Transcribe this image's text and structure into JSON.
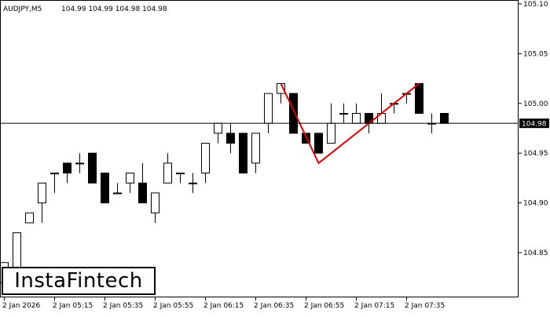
{
  "header": {
    "symbol": "AUDJPY,M5",
    "ohlc": "104.99 104.99 104.98 104.98"
  },
  "logo": {
    "text": "InstaFintech"
  },
  "colors": {
    "bull": "#ffffff",
    "bear": "#000000",
    "pattern": "#e00000",
    "current_price_label_bg": "#000000"
  },
  "chart_data": {
    "type": "candlestick",
    "symbol": "AUDJPY",
    "timeframe": "M5",
    "y_ticks": [
      "105.10",
      "105.05",
      "105.00",
      "104.95",
      "104.90",
      "104.85"
    ],
    "ylim": [
      104.81,
      105.1
    ],
    "x_ticks": [
      "2 Jan 2026",
      "2 Jan 05:15",
      "2 Jan 05:35",
      "2 Jan 05:55",
      "2 Jan 06:15",
      "2 Jan 06:35",
      "2 Jan 06:55",
      "2 Jan 07:15",
      "2 Jan 07:35"
    ],
    "current_price": 104.98,
    "current_price_label": "104.98",
    "candles": [
      {
        "o": 104.82,
        "h": 104.84,
        "l": 104.81,
        "c": 104.84
      },
      {
        "o": 104.82,
        "h": 104.87,
        "l": 104.82,
        "c": 104.87
      },
      {
        "o": 104.88,
        "h": 104.89,
        "l": 104.88,
        "c": 104.89
      },
      {
        "o": 104.9,
        "h": 104.92,
        "l": 104.88,
        "c": 104.92
      },
      {
        "o": 104.93,
        "h": 104.93,
        "l": 104.91,
        "c": 104.93
      },
      {
        "o": 104.94,
        "h": 104.94,
        "l": 104.92,
        "c": 104.93
      },
      {
        "o": 104.94,
        "h": 104.95,
        "l": 104.93,
        "c": 104.94
      },
      {
        "o": 104.95,
        "h": 104.95,
        "l": 104.92,
        "c": 104.92
      },
      {
        "o": 104.93,
        "h": 104.93,
        "l": 104.9,
        "c": 104.9
      },
      {
        "o": 104.91,
        "h": 104.92,
        "l": 104.91,
        "c": 104.91
      },
      {
        "o": 104.92,
        "h": 104.93,
        "l": 104.91,
        "c": 104.93
      },
      {
        "o": 104.92,
        "h": 104.94,
        "l": 104.9,
        "c": 104.9
      },
      {
        "o": 104.89,
        "h": 104.91,
        "l": 104.88,
        "c": 104.91
      },
      {
        "o": 104.92,
        "h": 104.95,
        "l": 104.92,
        "c": 104.94
      },
      {
        "o": 104.93,
        "h": 104.93,
        "l": 104.92,
        "c": 104.93
      },
      {
        "o": 104.92,
        "h": 104.93,
        "l": 104.91,
        "c": 104.92
      },
      {
        "o": 104.93,
        "h": 104.96,
        "l": 104.92,
        "c": 104.96
      },
      {
        "o": 104.97,
        "h": 104.98,
        "l": 104.96,
        "c": 104.98
      },
      {
        "o": 104.97,
        "h": 104.98,
        "l": 104.95,
        "c": 104.96
      },
      {
        "o": 104.97,
        "h": 104.97,
        "l": 104.93,
        "c": 104.93
      },
      {
        "o": 104.94,
        "h": 104.97,
        "l": 104.93,
        "c": 104.97
      },
      {
        "o": 104.98,
        "h": 105.01,
        "l": 104.97,
        "c": 105.01
      },
      {
        "o": 105.01,
        "h": 105.02,
        "l": 105.0,
        "c": 105.02
      },
      {
        "o": 105.01,
        "h": 105.01,
        "l": 104.97,
        "c": 104.97
      },
      {
        "o": 104.97,
        "h": 104.97,
        "l": 104.96,
        "c": 104.96
      },
      {
        "o": 104.97,
        "h": 104.97,
        "l": 104.95,
        "c": 104.95
      },
      {
        "o": 104.96,
        "h": 105.0,
        "l": 104.96,
        "c": 104.98
      },
      {
        "o": 104.99,
        "h": 105.0,
        "l": 104.98,
        "c": 104.99
      },
      {
        "o": 104.98,
        "h": 105.0,
        "l": 104.98,
        "c": 104.99
      },
      {
        "o": 104.99,
        "h": 104.99,
        "l": 104.97,
        "c": 104.98
      },
      {
        "o": 104.98,
        "h": 105.01,
        "l": 104.98,
        "c": 104.99
      },
      {
        "o": 105.0,
        "h": 105.0,
        "l": 104.99,
        "c": 105.0
      },
      {
        "o": 105.01,
        "h": 105.01,
        "l": 105.0,
        "c": 105.01
      },
      {
        "o": 105.02,
        "h": 105.02,
        "l": 104.99,
        "c": 104.99
      },
      {
        "o": 104.98,
        "h": 104.99,
        "l": 104.97,
        "c": 104.98
      },
      {
        "o": 104.99,
        "h": 104.99,
        "l": 104.98,
        "c": 104.98
      }
    ],
    "pattern_line": [
      {
        "i": 22,
        "y": 105.02
      },
      {
        "i": 25,
        "y": 104.94
      },
      {
        "i": 33,
        "y": 105.02
      }
    ],
    "grid": false
  }
}
